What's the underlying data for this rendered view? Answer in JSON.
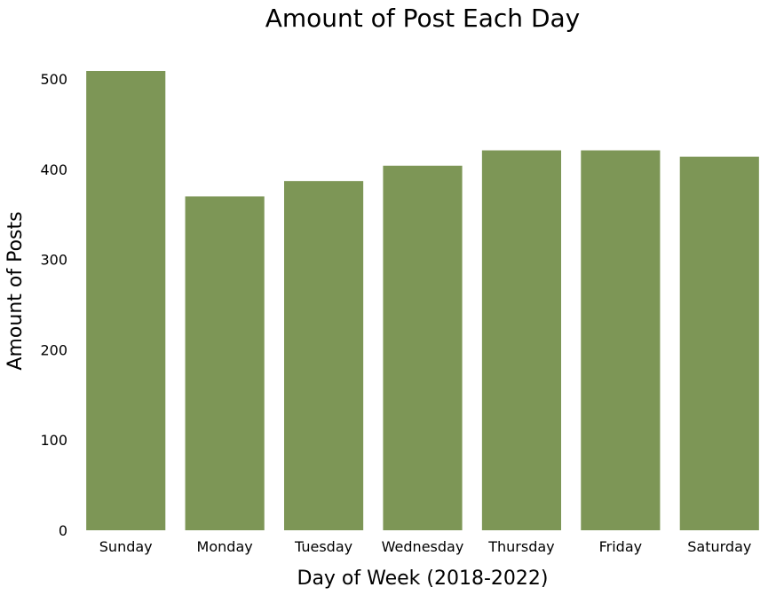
{
  "chart_data": {
    "type": "bar",
    "title": "Amount of Post Each Day",
    "xlabel": "Day of Week (2018-2022)",
    "ylabel": "Amount of Posts",
    "categories": [
      "Sunday",
      "Monday",
      "Tuesday",
      "Wednesday",
      "Thursday",
      "Friday",
      "Saturday"
    ],
    "values": [
      509,
      370,
      387,
      404,
      421,
      421,
      414
    ],
    "ylim": [
      0,
      509
    ],
    "yticks": [
      0,
      100,
      200,
      300,
      400,
      500
    ],
    "bar_color": "#7d9656",
    "grid": false,
    "legend": "none"
  }
}
